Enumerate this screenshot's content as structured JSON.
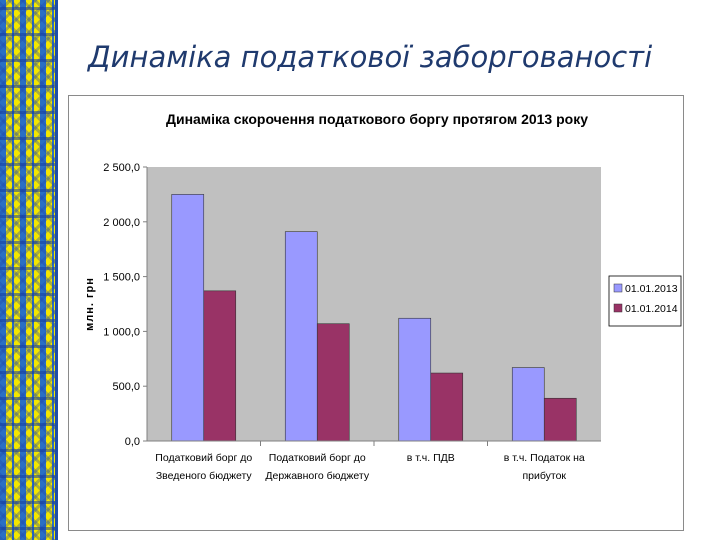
{
  "slide": {
    "title": "Динаміка податкової заборгованості"
  },
  "colors": {
    "series_2013": "#9999ff",
    "series_2014": "#993366",
    "plot_area": "#c0c0c0",
    "ornament_blue": "#2a6fc4",
    "ornament_yellow": "#f3e600",
    "title_color": "#1f3a6e"
  },
  "chart_data": {
    "type": "bar",
    "title": "Динаміка скорочення податкового боргу протягом 2013 року",
    "ylabel": "млн. грн",
    "xlabel": "",
    "ylim": [
      0,
      2500
    ],
    "yticks": [
      "0,0",
      "500,0",
      "1 000,0",
      "1 500,0",
      "2 000,0",
      "2 500,0"
    ],
    "ytick_values": [
      0,
      500,
      1000,
      1500,
      2000,
      2500
    ],
    "grid": false,
    "legend_position": "right",
    "categories": [
      [
        "Податковий борг до",
        "Зведеного бюджету"
      ],
      [
        "Податковий борг до",
        "Державного бюджету"
      ],
      [
        "в т.ч. ПДВ"
      ],
      [
        "в т.ч. Податок на",
        "прибуток"
      ]
    ],
    "series": [
      {
        "name": "01.01.2013",
        "color": "#9999ff",
        "values": [
          2250,
          1910,
          1120,
          670
        ]
      },
      {
        "name": "01.01.2014",
        "color": "#993366",
        "values": [
          1370,
          1070,
          620,
          390
        ]
      }
    ]
  }
}
